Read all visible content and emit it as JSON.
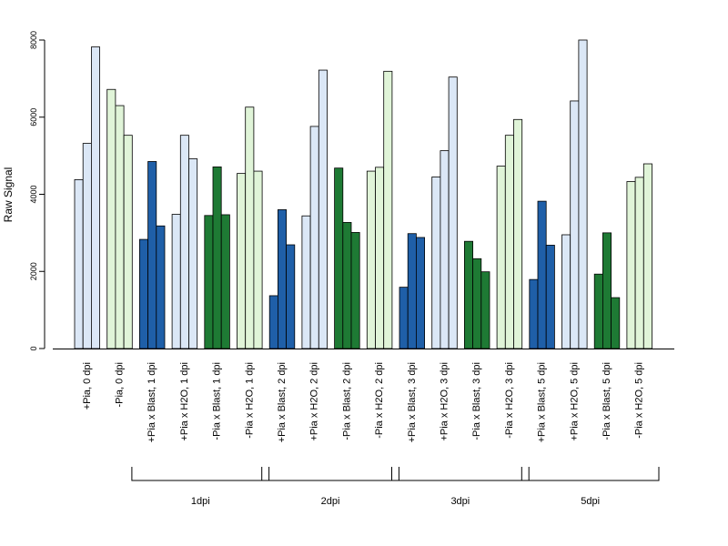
{
  "chart_data": {
    "type": "bar",
    "ylabel": "Raw Signal",
    "xlabel": "",
    "title": "",
    "ylim": [
      0,
      8000
    ],
    "yticks": [
      0,
      2000,
      4000,
      6000,
      8000
    ],
    "grid": false,
    "colors": {
      "light_blue": "#dbe7f6",
      "dark_blue": "#1f5fa8",
      "dark_green": "#1e7a34",
      "light_green": "#e0f4d8"
    },
    "categories": [
      {
        "label": "+Pia, 0 dpi",
        "color": "light_blue",
        "values": [
          4380,
          5320,
          7820
        ]
      },
      {
        "label": "-Pia, 0 dpi",
        "color": "light_green",
        "values": [
          6720,
          6300,
          5530
        ]
      },
      {
        "label": "+Pia x Blast, 1 dpi",
        "color": "dark_blue",
        "values": [
          2830,
          4850,
          3180
        ]
      },
      {
        "label": "+Pia x H2O, 1 dpi",
        "color": "light_blue",
        "values": [
          3480,
          5530,
          4920
        ]
      },
      {
        "label": "-Pia x Blast, 1 dpi",
        "color": "dark_green",
        "values": [
          3450,
          4710,
          3470
        ]
      },
      {
        "label": "-Pia x H2O, 1 dpi",
        "color": "light_green",
        "values": [
          4540,
          6260,
          4600
        ]
      },
      {
        "label": "+Pia x Blast, 2 dpi",
        "color": "dark_blue",
        "values": [
          1370,
          3600,
          2690
        ]
      },
      {
        "label": "+Pia x H2O, 2 dpi",
        "color": "light_blue",
        "values": [
          3440,
          5760,
          7220
        ]
      },
      {
        "label": "-Pia x Blast, 2 dpi",
        "color": "dark_green",
        "values": [
          4680,
          3270,
          3010
        ]
      },
      {
        "label": "-Pia x H2O, 2 dpi",
        "color": "light_green",
        "values": [
          4600,
          4700,
          7190
        ]
      },
      {
        "label": "+Pia x Blast, 3 dpi",
        "color": "dark_blue",
        "values": [
          1590,
          2980,
          2880
        ]
      },
      {
        "label": "+Pia x H2O, 3 dpi",
        "color": "light_blue",
        "values": [
          4450,
          5130,
          7040
        ]
      },
      {
        "label": "-Pia x Blast, 3 dpi",
        "color": "dark_green",
        "values": [
          2780,
          2330,
          1990
        ]
      },
      {
        "label": "-Pia x H2O, 3 dpi",
        "color": "light_green",
        "values": [
          4730,
          5530,
          5940
        ]
      },
      {
        "label": "+Pia x Blast, 5 dpi",
        "color": "dark_blue",
        "values": [
          1790,
          3820,
          2680
        ]
      },
      {
        "label": "+Pia x H2O, 5 dpi",
        "color": "light_blue",
        "values": [
          2950,
          6420,
          8000
        ]
      },
      {
        "label": "-Pia x Blast, 5 dpi",
        "color": "dark_green",
        "values": [
          1930,
          3000,
          1320
        ]
      },
      {
        "label": "-Pia x H2O, 5 dpi",
        "color": "light_green",
        "values": [
          4330,
          4440,
          4790
        ]
      }
    ],
    "groups": [
      {
        "label": "1dpi",
        "from": 2,
        "to": 5
      },
      {
        "label": "2dpi",
        "from": 6,
        "to": 9
      },
      {
        "label": "3dpi",
        "from": 10,
        "to": 13
      },
      {
        "label": "5dpi",
        "from": 14,
        "to": 17
      }
    ]
  }
}
